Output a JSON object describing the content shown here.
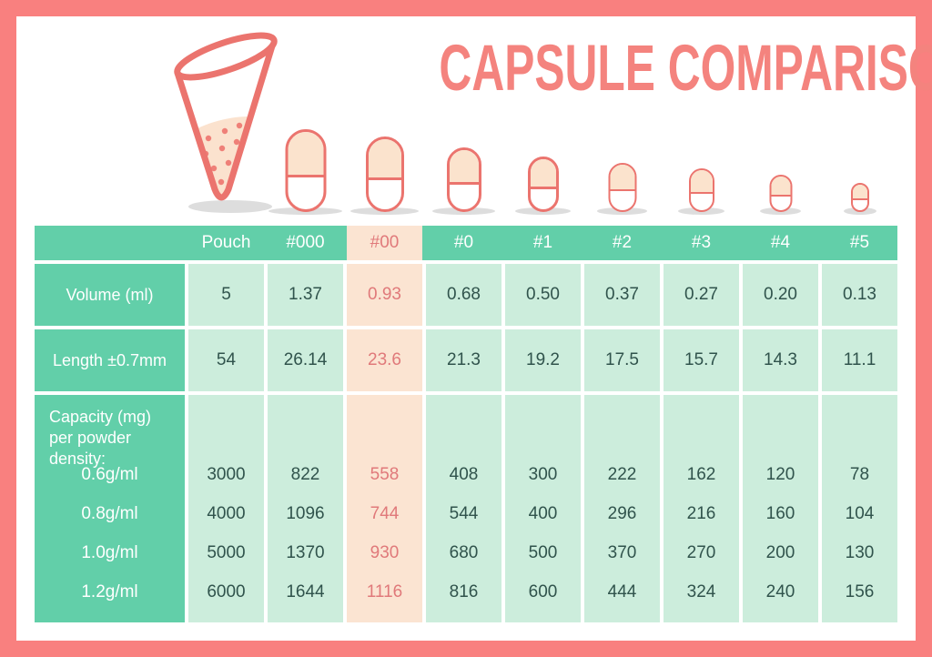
{
  "title": "CAPSULE COMPARISON",
  "chart_data": {
    "type": "table",
    "title": "CAPSULE COMPARISON",
    "columns": [
      "",
      "Pouch",
      "#000",
      "#00",
      "#0",
      "#1",
      "#2",
      "#3",
      "#4",
      "#5"
    ],
    "highlighted_column": "#00",
    "rows": [
      {
        "label": "Volume (ml)",
        "values": [
          "5",
          "1.37",
          "0.93",
          "0.68",
          "0.50",
          "0.37",
          "0.27",
          "0.20",
          "0.13"
        ]
      },
      {
        "label": "Length ±0.7mm",
        "values": [
          "54",
          "26.14",
          "23.6",
          "21.3",
          "19.2",
          "17.5",
          "15.7",
          "14.3",
          "11.1"
        ]
      }
    ],
    "capacity_section": {
      "label": "Capacity (mg) per powder density:",
      "rows": [
        {
          "label": "0.6g/ml",
          "values": [
            "3000",
            "822",
            "558",
            "408",
            "300",
            "222",
            "162",
            "120",
            "78"
          ]
        },
        {
          "label": "0.8g/ml",
          "values": [
            "4000",
            "1096",
            "744",
            "544",
            "400",
            "296",
            "216",
            "160",
            "104"
          ]
        },
        {
          "label": "1.0g/ml",
          "values": [
            "5000",
            "1370",
            "930",
            "680",
            "500",
            "370",
            "270",
            "200",
            "130"
          ]
        },
        {
          "label": "1.2g/ml",
          "values": [
            "6000",
            "1644",
            "1116",
            "816",
            "600",
            "444",
            "324",
            "240",
            "156"
          ]
        }
      ]
    },
    "legend_position": "none",
    "grid": "cell-gaps"
  },
  "icons": {
    "pouch": "pouch-cone-icon",
    "capsules": [
      "capsule-icon-000",
      "capsule-icon-00",
      "capsule-icon-0",
      "capsule-icon-1",
      "capsule-icon-2",
      "capsule-icon-3",
      "capsule-icon-4",
      "capsule-icon-5"
    ]
  },
  "colors": {
    "frame": "#f9807f",
    "title": "#f4837e",
    "header_teal": "#62cfa9",
    "cell_mint": "#cceddc",
    "highlight_peach": "#fbe4d2",
    "highlight_text": "#e0797a",
    "cell_text": "#30534c",
    "capsule_outline": "#eb746e",
    "capsule_cap_fill": "#fbe3cd",
    "shadow_gray": "#d4d4d4"
  }
}
